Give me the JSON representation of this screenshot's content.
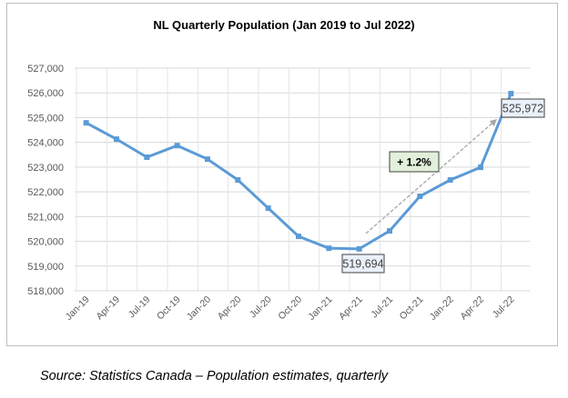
{
  "chart_data": {
    "type": "line",
    "title": "NL Quarterly Population (Jan 2019 to Jul 2022)",
    "xlabel": "",
    "ylabel": "",
    "categories": [
      "Jan-19",
      "Apr-19",
      "Jul-19",
      "Oct-19",
      "Jan-20",
      "Apr-20",
      "Jul-20",
      "Oct-20",
      "Jan-21",
      "Apr-21",
      "Jul-21",
      "Oct-21",
      "Jan-22",
      "Apr-22",
      "Jul-22"
    ],
    "values": [
      524790,
      524130,
      523400,
      523870,
      523320,
      522480,
      521340,
      520200,
      519720,
      519694,
      520420,
      521820,
      522480,
      522990,
      525972
    ],
    "ylim": [
      518000,
      527000
    ],
    "yticks": [
      "518,000",
      "519,000",
      "520,000",
      "521,000",
      "522,000",
      "523,000",
      "524,000",
      "525,000",
      "526,000",
      "527,000"
    ],
    "grid": true,
    "line_color": "#5b9bd5",
    "annotations": {
      "min_label": "519,694",
      "max_label": "525,972",
      "change_label": "+ 1.2%",
      "change_bg": "#e2efda"
    }
  },
  "source": "Source: Statistics Canada – Population estimates, quarterly"
}
